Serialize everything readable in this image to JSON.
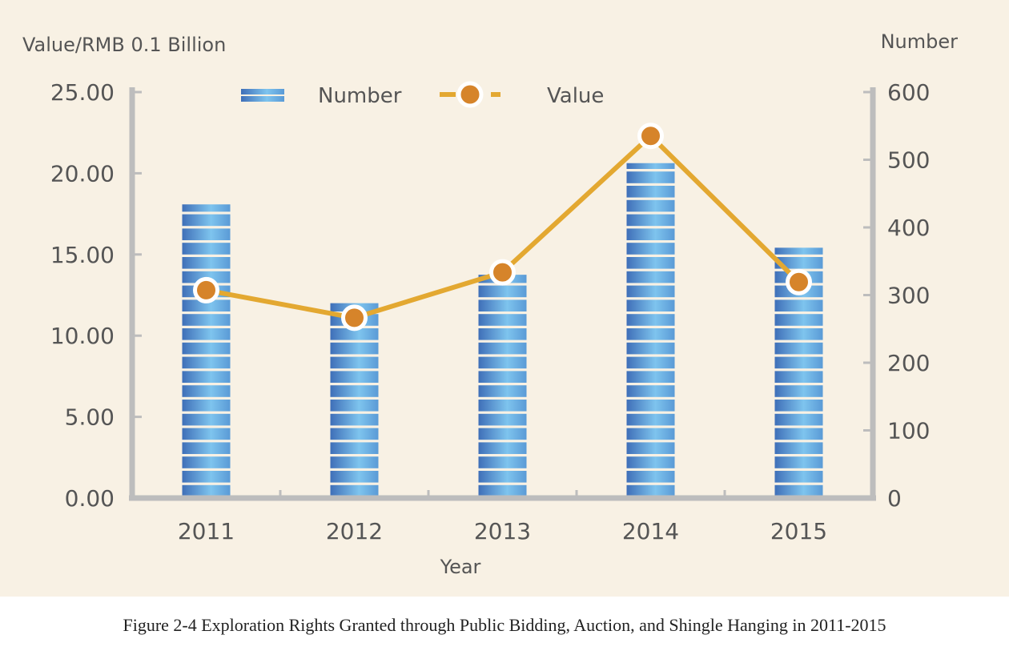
{
  "caption": "Figure 2-4 Exploration Rights Granted through Public Bidding, Auction, and Shingle Hanging in 2011-2015",
  "colors": {
    "panel": "#f8f1e4",
    "axis": "#bdbdbd",
    "bar_dark": "#3f6fb8",
    "bar_light": "#7ec4ee",
    "line": "#e3a831",
    "marker": "#d6842a",
    "marker_ring": "#ffffff",
    "text": "#555555"
  },
  "chart_data": {
    "type": "bar",
    "categories": [
      "2011",
      "2012",
      "2013",
      "2014",
      "2015"
    ],
    "series": [
      {
        "name": "Number",
        "type": "bar",
        "axis": "right",
        "values": [
          434,
          288,
          330,
          495,
          370
        ]
      },
      {
        "name": "Value",
        "type": "line",
        "axis": "left",
        "values": [
          12.8,
          11.1,
          13.9,
          22.3,
          13.3
        ]
      }
    ],
    "xlabel": "Year",
    "ylabel_left": "Value/RMB 0.1 Billion",
    "ylabel_right": "Number",
    "ylim_left": [
      0,
      25
    ],
    "ylim_right": [
      0,
      600
    ],
    "yticks_left": [
      "0.00",
      "5.00",
      "10.00",
      "15.00",
      "20.00",
      "25.00"
    ],
    "yticks_right": [
      "0",
      "100",
      "200",
      "300",
      "400",
      "500",
      "600"
    ],
    "legend": [
      "Number",
      "Value"
    ],
    "legend_position": "top-center",
    "grid": false
  }
}
